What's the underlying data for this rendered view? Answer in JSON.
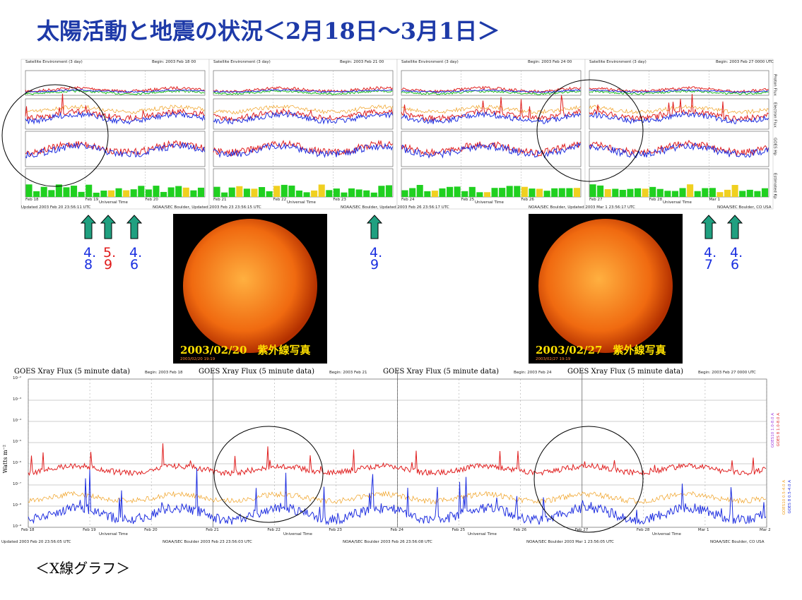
{
  "title": "太陽活動と地震の状況＜2月18日～3月1日＞",
  "top_panels": [
    {
      "header": "Satellite Environment (3 day)",
      "begin": "Begin: 2003 Feb 18 00",
      "x_labels": [
        "Feb 18",
        "Feb 19",
        "Feb 20"
      ],
      "x_title": "Universal Time",
      "footer": "Updated 2003 Feb 20 23:56:11 UTC"
    },
    {
      "header": "Satellite Environment (3 day)",
      "begin": "Begin: 2003 Feb 21 00",
      "x_labels": [
        "Feb 21",
        "Feb 22",
        "Feb 23"
      ],
      "x_title": "Universal Time",
      "footer": "NOAA/SEC Boulder, Updated 2003 Feb 23 23:56:15 UTC"
    },
    {
      "header": "Satellite Environment (3 day)",
      "begin": "Begin: 2003 Feb 24 00",
      "x_labels": [
        "Feb 24",
        "Feb 25",
        "Feb 26"
      ],
      "x_title": "Universal Time",
      "footer": "NOAA/SEC Boulder, Updated 2003 Feb 26 23:56:17 UTC"
    },
    {
      "header": "Satellite Environment (3 day)",
      "begin": "Begin: 2003 Feb 27 0000 UTC",
      "x_labels": [
        "Feb 27",
        "Feb 28",
        "Mar 1"
      ],
      "x_title": "Universal Time",
      "footer": "NOAA/SEC Boulder, Updated 2003 Mar 1 23:56:17 UTC"
    }
  ],
  "side_labels": [
    "Proton Flux",
    "Electron Flux",
    "GOES Hp",
    "Estimated Kp"
  ],
  "top_footer_end": "NOAA/SEC Boulder, CO USA",
  "quakes": [
    {
      "magnitude": "4.8",
      "color": "#1a2fe0"
    },
    {
      "magnitude": "5.9",
      "color": "#e01a1a"
    },
    {
      "magnitude": "4.6",
      "color": "#1a2fe0"
    },
    {
      "magnitude": "4.9",
      "color": "#1a2fe0"
    },
    {
      "magnitude": "4.7",
      "color": "#1a2fe0"
    },
    {
      "magnitude": "4.6",
      "color": "#1a2fe0"
    }
  ],
  "photos": [
    {
      "caption": "2003/02/20　紫外線写真",
      "stamp": "2003/02/20 19:19"
    },
    {
      "caption": "2003/02/27　紫外線写真",
      "stamp": "2003/02/27 19:19"
    }
  ],
  "xray": {
    "headers": [
      "GOES Xray Flux (5 minute data)",
      "GOES Xray Flux (5 minute data)",
      "GOES Xray Flux (5 minute data)",
      "GOES Xray Flux (5 minute data)"
    ],
    "begins": [
      "Begin: 2003 Feb 18",
      "Begin: 2003 Feb 21",
      "Begin: 2003 Feb 24",
      "Begin: 2003 Feb 27 0000 UTC"
    ],
    "y_label": "Watts m⁻²",
    "y_ticks": [
      "10⁻²",
      "10⁻³",
      "10⁻⁴",
      "10⁻⁵",
      "10⁻⁶",
      "10⁻⁷",
      "10⁻⁸",
      "10⁻⁹"
    ],
    "x_labels": [
      "Feb 18",
      "Feb 19",
      "Feb 20",
      "Feb 21",
      "Feb 22",
      "Feb 23",
      "Feb 24",
      "Feb 25",
      "Feb 26",
      "Feb 27",
      "Feb 28",
      "Mar 1",
      "Mar 2"
    ],
    "x_title": "Universal Time",
    "legend": [
      "GOES10 1.0-8.0 A",
      "GOES 8 1.0-8.0 A",
      "GOES10 0.5-4.0 A",
      "GOES 8 0.5-4.0 A"
    ],
    "footers": [
      "Updated 2003 Feb 20 23:56:05 UTC",
      "NOAA/SEC Boulder 2003 Feb 23 23:56:03 UTC",
      "NOAA/SEC Boulder 2003 Feb 26 23:56:08 UTC",
      "NOAA/SEC Boulder 2003 Mar 1 23:56:05 UTC",
      "NOAA/SEC Boulder, CO USA"
    ]
  },
  "caption": "＜X線グラフ＞"
}
